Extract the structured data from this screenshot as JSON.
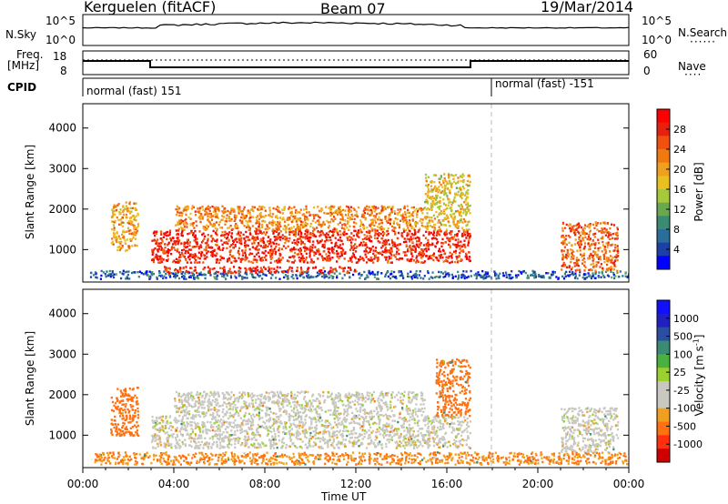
{
  "header": {
    "station": "Kerguelen (fitACF)",
    "beam": "Beam 07",
    "date": "19/Mar/2014"
  },
  "sky_panel": {
    "left_label": "N.Sky",
    "right_label": "N.Search",
    "left_ticks": [
      "10^5",
      "10^0"
    ],
    "right_ticks": [
      "10^5",
      "10^0"
    ]
  },
  "freq_panel": {
    "label_line1": "Freq.",
    "label_line2": "[MHz]",
    "right_label": "Nave",
    "left_ticks": [
      "18",
      "8"
    ],
    "right_ticks": [
      "60",
      "0"
    ]
  },
  "cpid": {
    "label": "CPID",
    "segments": [
      {
        "text": "normal (fast) 151"
      },
      {
        "text": "normal (fast) -151"
      }
    ]
  },
  "colors": {
    "power_scale": [
      "#0000ff",
      "#1c3fa8",
      "#2a6e9a",
      "#3a8a74",
      "#6aa84f",
      "#a8c83c",
      "#e8c020",
      "#f0a020",
      "#f07a10",
      "#f05010",
      "#e82010",
      "#ff0000"
    ],
    "velocity_scale": [
      "#d00000",
      "#ff3010",
      "#ff7010",
      "#f0a020",
      "#c8c8c0",
      "#c8c8c0",
      "#9ad030",
      "#4ab040",
      "#3a8a74",
      "#2a4ea0",
      "#2020c0",
      "#1010ff"
    ]
  },
  "chart_data": [
    {
      "type": "heatmap",
      "title": "",
      "quantity": "Power",
      "ylabel": "Slant Range [km]",
      "yticks": [
        "4000",
        "3000",
        "2000",
        "1000"
      ],
      "ylim": [
        200,
        4600
      ],
      "xlim_hours": [
        0,
        24
      ],
      "colorbar_label": "Power [dB]",
      "colorbar_ticks": [
        "28",
        "24",
        "20",
        "16",
        "12",
        "8",
        "4"
      ],
      "clim": [
        0,
        32
      ],
      "echo_regions": [
        {
          "t": [
            0.3,
            24.0
          ],
          "r": [
            300,
            500
          ],
          "level": 6
        },
        {
          "t": [
            1.2,
            2.4
          ],
          "r": [
            1000,
            2200
          ],
          "level": 20
        },
        {
          "t": [
            3.0,
            17.0
          ],
          "r": [
            700,
            1500
          ],
          "level": 28
        },
        {
          "t": [
            4.0,
            15.0
          ],
          "r": [
            1500,
            2100
          ],
          "level": 22
        },
        {
          "t": [
            3.5,
            12.0
          ],
          "r": [
            450,
            600
          ],
          "level": 28
        },
        {
          "t": [
            15.0,
            17.0
          ],
          "r": [
            1500,
            2900
          ],
          "level": 18
        },
        {
          "t": [
            21.0,
            23.5
          ],
          "r": [
            500,
            1700
          ],
          "level": 24
        }
      ]
    },
    {
      "type": "heatmap",
      "title": "",
      "quantity": "Velocity",
      "ylabel": "Slant Range [km]",
      "yticks": [
        "4000",
        "3000",
        "2000",
        "1000"
      ],
      "ylim": [
        200,
        4600
      ],
      "xlim_hours": [
        0,
        24
      ],
      "xticks": [
        "00:00",
        "04:00",
        "08:00",
        "12:00",
        "16:00",
        "20:00",
        "00:00"
      ],
      "xlabel": "Time UT",
      "colorbar_label": "Velocity [m s",
      "colorbar_label_sup": "-1",
      "colorbar_label_end": "]",
      "colorbar_ticks": [
        "1000",
        "500",
        "100",
        "25",
        "-25",
        "-100",
        "-500",
        "-1000"
      ],
      "echo_regions": [
        {
          "t": [
            3.0,
            17.0
          ],
          "r": [
            700,
            1500
          ],
          "vel": 0
        },
        {
          "t": [
            4.0,
            15.0
          ],
          "r": [
            1500,
            2100
          ],
          "vel": 0
        },
        {
          "t": [
            1.2,
            2.4
          ],
          "r": [
            1000,
            2200
          ],
          "vel": -300
        },
        {
          "t": [
            15.5,
            17.0
          ],
          "r": [
            1500,
            2900
          ],
          "vel": -300
        },
        {
          "t": [
            21.0,
            23.5
          ],
          "r": [
            600,
            1700
          ],
          "vel": 0
        },
        {
          "t": [
            0.5,
            24.0
          ],
          "r": [
            300,
            600
          ],
          "vel": -100
        }
      ]
    }
  ]
}
